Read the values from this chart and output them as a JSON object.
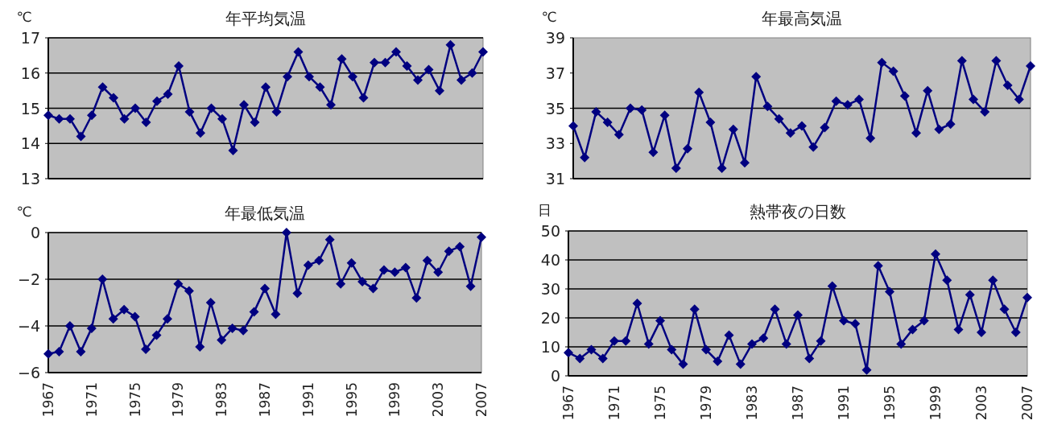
{
  "chart_data": [
    {
      "type": "line",
      "title": "年平均気温",
      "ylabel": "℃",
      "x": [
        1967,
        1968,
        1969,
        1970,
        1971,
        1972,
        1973,
        1974,
        1975,
        1976,
        1977,
        1978,
        1979,
        1980,
        1981,
        1982,
        1983,
        1984,
        1985,
        1986,
        1987,
        1988,
        1989,
        1990,
        1991,
        1992,
        1993,
        1994,
        1995,
        1996,
        1997,
        1998,
        1999,
        2000,
        2001,
        2002,
        2003,
        2004,
        2005,
        2006,
        2007
      ],
      "xlim": [
        1967,
        2007
      ],
      "xticks": [
        1967,
        1971,
        1975,
        1979,
        1983,
        1987,
        1991,
        1995,
        1999,
        2003,
        2007
      ],
      "ylim": [
        13,
        17
      ],
      "yticks": [
        13,
        14,
        15,
        16,
        17
      ],
      "grid": "y",
      "marker": "diamond",
      "tick_labels": "y",
      "series": [
        {
          "color": "#000080",
          "values": [
            14.8,
            14.7,
            14.7,
            14.2,
            14.8,
            15.6,
            15.3,
            14.7,
            15.0,
            14.6,
            15.2,
            15.4,
            16.2,
            14.9,
            14.3,
            15.0,
            14.7,
            13.8,
            15.1,
            14.6,
            15.6,
            14.9,
            15.9,
            16.6,
            15.9,
            15.6,
            15.1,
            16.4,
            15.9,
            15.3,
            16.3,
            16.3,
            16.6,
            16.2,
            15.8,
            16.1,
            15.5,
            16.8,
            15.8,
            16.0,
            16.6
          ]
        }
      ]
    },
    {
      "type": "line",
      "title": "年最高気温",
      "ylabel": "℃",
      "x": [
        1967,
        1968,
        1969,
        1970,
        1971,
        1972,
        1973,
        1974,
        1975,
        1976,
        1977,
        1978,
        1979,
        1980,
        1981,
        1982,
        1983,
        1984,
        1985,
        1986,
        1987,
        1988,
        1989,
        1990,
        1991,
        1992,
        1993,
        1994,
        1995,
        1996,
        1997,
        1998,
        1999,
        2000,
        2001,
        2002,
        2003,
        2004,
        2005,
        2006,
        2007
      ],
      "xlim": [
        1967,
        2007
      ],
      "xticks": [
        1967,
        1971,
        1975,
        1979,
        1983,
        1987,
        1991,
        1995,
        1999,
        2003,
        2007
      ],
      "ylim": [
        31,
        39
      ],
      "yticks": [
        31,
        33,
        35,
        37,
        39
      ],
      "marker": "diamond",
      "tick_labels": "y",
      "ref_lines": [
        {
          "axis": "y",
          "value": 35
        }
      ],
      "series": [
        {
          "color": "#000080",
          "values": [
            34.0,
            32.2,
            34.8,
            34.2,
            33.5,
            35.0,
            34.9,
            32.5,
            34.6,
            31.6,
            32.7,
            35.9,
            34.2,
            31.6,
            33.8,
            31.9,
            36.8,
            35.1,
            34.4,
            33.6,
            34.0,
            32.8,
            33.9,
            35.4,
            35.2,
            35.5,
            33.3,
            37.6,
            37.1,
            35.7,
            33.6,
            36.0,
            33.8,
            34.1,
            37.7,
            35.5,
            34.8,
            37.7,
            36.3,
            35.5,
            37.4
          ]
        }
      ]
    },
    {
      "type": "line",
      "title": "年最低気温",
      "ylabel": "℃",
      "x": [
        1967,
        1968,
        1969,
        1970,
        1971,
        1972,
        1973,
        1974,
        1975,
        1976,
        1977,
        1978,
        1979,
        1980,
        1981,
        1982,
        1983,
        1984,
        1985,
        1986,
        1987,
        1988,
        1989,
        1990,
        1991,
        1992,
        1993,
        1994,
        1995,
        1996,
        1997,
        1998,
        1999,
        2000,
        2001,
        2002,
        2003,
        2004,
        2005,
        2006,
        2007
      ],
      "xlim": [
        1967,
        2007
      ],
      "xticks": [
        1967,
        1971,
        1975,
        1979,
        1983,
        1987,
        1991,
        1995,
        1999,
        2003,
        2007
      ],
      "ylim": [
        -6,
        0
      ],
      "yticks": [
        -6,
        -4,
        -2,
        0
      ],
      "grid": "y",
      "marker": "diamond",
      "series": [
        {
          "color": "#000080",
          "values": [
            -5.2,
            -5.1,
            -4.0,
            -5.1,
            -4.1,
            -2.0,
            -3.7,
            -3.3,
            -3.6,
            -5.0,
            -4.4,
            -3.7,
            -2.2,
            -2.5,
            -4.9,
            -3.0,
            -4.6,
            -4.1,
            -4.2,
            -3.4,
            -2.4,
            -3.5,
            0.0,
            -2.6,
            -1.4,
            -1.2,
            -0.3,
            -2.2,
            -1.3,
            -2.1,
            -2.4,
            -1.6,
            -1.7,
            -1.5,
            -2.8,
            -1.2,
            -1.7,
            -0.8,
            -0.6,
            -2.3,
            -0.2
          ]
        }
      ]
    },
    {
      "type": "line",
      "title": "熱帯夜の日数",
      "ylabel": "日",
      "x": [
        1967,
        1968,
        1969,
        1970,
        1971,
        1972,
        1973,
        1974,
        1975,
        1976,
        1977,
        1978,
        1979,
        1980,
        1981,
        1982,
        1983,
        1984,
        1985,
        1986,
        1987,
        1988,
        1989,
        1990,
        1991,
        1992,
        1993,
        1994,
        1995,
        1996,
        1997,
        1998,
        1999,
        2000,
        2001,
        2002,
        2003,
        2004,
        2005,
        2006,
        2007
      ],
      "xlim": [
        1967,
        2007
      ],
      "xticks": [
        1967,
        1971,
        1975,
        1979,
        1983,
        1987,
        1991,
        1995,
        1999,
        2003,
        2007
      ],
      "ylim": [
        0,
        50
      ],
      "yticks": [
        0,
        10,
        20,
        30,
        40,
        50
      ],
      "grid": "y",
      "marker": "diamond",
      "series": [
        {
          "color": "#000080",
          "values": [
            8,
            6,
            9,
            6,
            12,
            12,
            25,
            11,
            19,
            9,
            4,
            23,
            9,
            5,
            14,
            4,
            11,
            13,
            23,
            11,
            21,
            6,
            12,
            31,
            19,
            18,
            2,
            38,
            29,
            11,
            16,
            19,
            42,
            33,
            16,
            28,
            15,
            33,
            23,
            15,
            27
          ]
        }
      ]
    }
  ]
}
